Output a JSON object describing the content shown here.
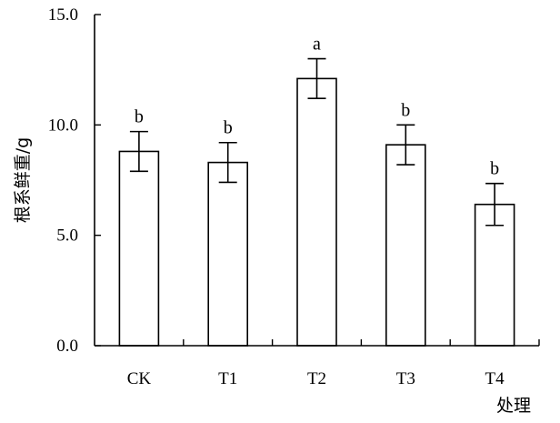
{
  "chart_data": {
    "type": "bar",
    "categories": [
      "CK",
      "T1",
      "T2",
      "T3",
      "T4"
    ],
    "values": [
      8.8,
      8.3,
      12.1,
      9.1,
      6.4
    ],
    "errors": [
      0.9,
      0.9,
      0.9,
      0.9,
      0.95
    ],
    "significance": [
      "b",
      "b",
      "a",
      "b",
      "b"
    ],
    "xlabel": "处理",
    "ylabel": "根系鲜重/g",
    "ylim": [
      0,
      15
    ],
    "yticks": [
      "0.0",
      "5.0",
      "10.0",
      "15.0"
    ],
    "grid": false,
    "bar_fill": "#ffffff",
    "stroke_color": "#000000"
  }
}
